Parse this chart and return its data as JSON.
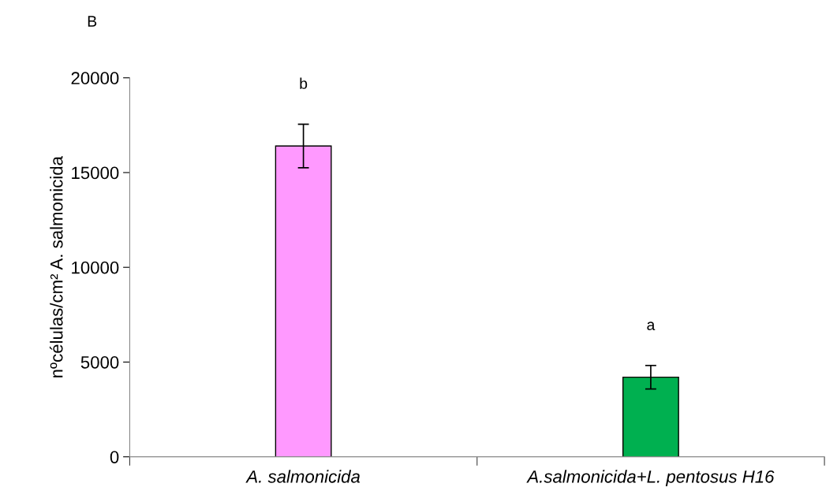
{
  "chart_data": {
    "type": "bar",
    "ylabel": "nºcélulas/cm² A. salmonicida",
    "categories": [
      "A. salmonicida",
      "A.salmonicida+L. pentosus H16"
    ],
    "values": [
      16400,
      4200
    ],
    "colors": [
      "#ff99ff",
      "#00b050"
    ],
    "errors": [
      1150,
      620
    ],
    "ylim": [
      0,
      20000
    ],
    "yticks": [
      0,
      5000,
      10000,
      15000,
      20000
    ],
    "grid": false,
    "legend": false,
    "annotations": [
      "b",
      "a",
      "B"
    ]
  }
}
